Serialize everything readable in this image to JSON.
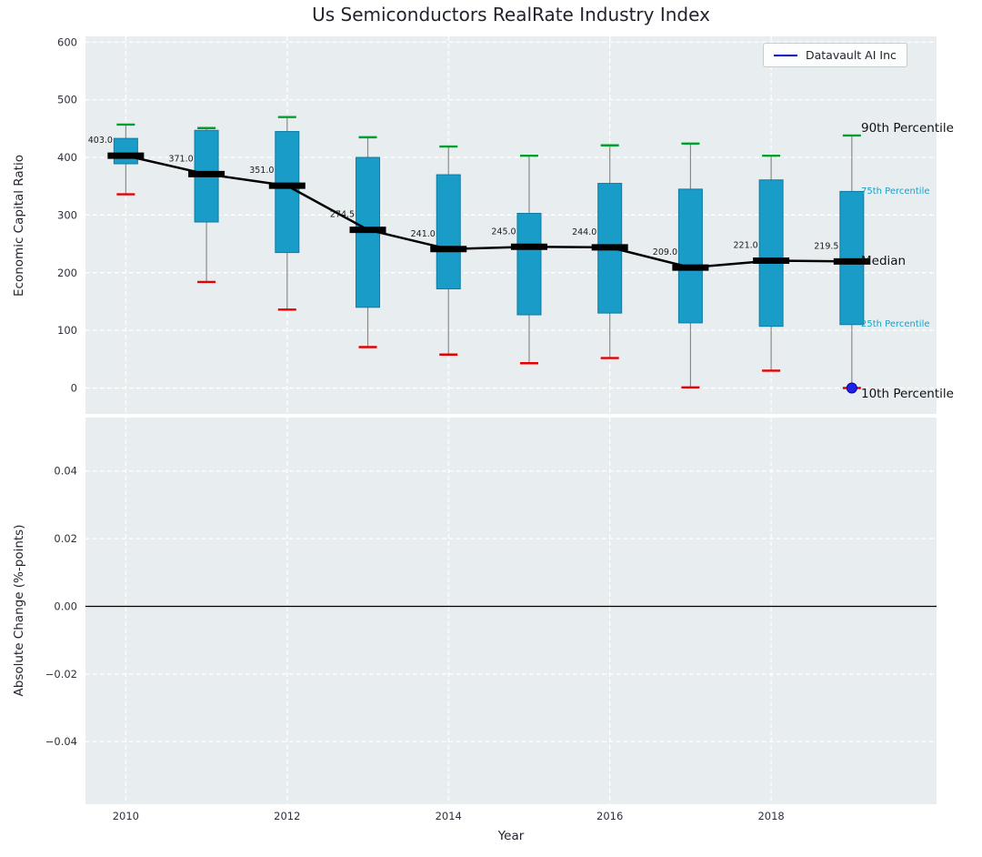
{
  "title": "Us Semiconductors RealRate Industry Index",
  "legend": {
    "label": "Datavault AI Inc"
  },
  "annotations": {
    "p90": "90th Percentile",
    "p75": "75th Percentile",
    "median": "Median",
    "p25": "25th Percentile",
    "p10": "10th Percentile"
  },
  "style": {
    "plot_bg": "#e8edf0",
    "grid_color": "#ffffff",
    "box_fill": "#1a9cc9",
    "box_edge": "#0e7ba3",
    "whisker_color": "#8a8a8a",
    "cap_high_color": "#00a02c",
    "cap_low_color": "#e60000",
    "median_color": "#000000",
    "trend_color": "#000000",
    "company_line_color": "#0000cc",
    "company_dot_color": "#2222e6",
    "small_annotation_color": "#1a9fc4",
    "tick_color": "#30303b",
    "zero_line_color": "#000000"
  },
  "chart_data": [
    {
      "type": "boxplot",
      "title": "Us Semiconductors RealRate Industry Index",
      "xlabel": "Year",
      "ylabel": "Economic Capital Ratio",
      "ylim": [
        -45,
        610
      ],
      "xlim": [
        2009.5,
        2020.05
      ],
      "yticks": [
        0,
        100,
        200,
        300,
        400,
        500,
        600
      ],
      "xticks": [
        2010,
        2012,
        2014,
        2016,
        2018
      ],
      "grid": true,
      "legend_position": "upper right",
      "categories": [
        2010,
        2011,
        2012,
        2013,
        2014,
        2015,
        2016,
        2017,
        2018,
        2019
      ],
      "series": [
        {
          "name": "90th Percentile",
          "values": [
            457,
            451,
            470,
            435,
            419,
            403,
            421,
            424,
            403,
            438
          ]
        },
        {
          "name": "75th Percentile",
          "values": [
            433,
            447,
            445,
            400,
            370,
            303,
            355,
            345,
            361,
            341
          ]
        },
        {
          "name": "Median",
          "values": [
            403.0,
            371.0,
            351.0,
            274.5,
            241.0,
            245.0,
            244.0,
            209.0,
            221.0,
            219.5
          ]
        },
        {
          "name": "25th Percentile",
          "values": [
            389,
            288,
            235,
            140,
            172,
            127,
            130,
            113,
            107,
            110
          ]
        },
        {
          "name": "10th Percentile",
          "values": [
            336,
            184,
            136,
            71,
            58,
            43,
            52,
            1,
            30,
            0
          ]
        },
        {
          "name": "Datavault AI Inc",
          "x": [
            2019
          ],
          "values": [
            0
          ]
        }
      ],
      "median_labels": [
        "403.0",
        "371.0",
        "351.0",
        "274.5",
        "241.0",
        "245.0",
        "244.0",
        "209.0",
        "221.0",
        "219.5"
      ]
    },
    {
      "type": "line",
      "xlabel": "Year",
      "ylabel": "Absolute Change (%-points)",
      "ylim": [
        -0.0585,
        0.0558
      ],
      "yticks": [
        0.04,
        0.02,
        0.0,
        -0.02,
        -0.04
      ],
      "xticks": [
        2010,
        2012,
        2014,
        2016,
        2018
      ],
      "grid": true,
      "zero_line": 0.0,
      "series": []
    }
  ]
}
